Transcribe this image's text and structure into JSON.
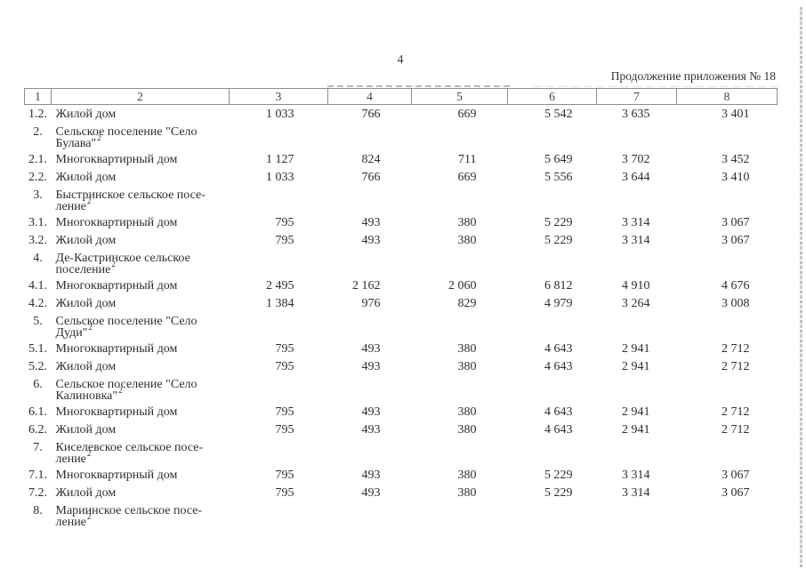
{
  "page": {
    "page_number": "4",
    "continuation_note": "Продолжение приложения № 18"
  },
  "table": {
    "header_cells": [
      "1",
      "2",
      "3",
      "4",
      "5",
      "6",
      "7",
      "8"
    ],
    "rows": [
      {
        "num": "1.2.",
        "name_lines": [
          "Жилой дом"
        ],
        "sup": "",
        "values": [
          "1 033",
          "766",
          "669",
          "5 542",
          "3 635",
          "3 401"
        ]
      },
      {
        "num": "2.",
        "name_lines": [
          "Сельское поселение \"Село",
          "Булава\""
        ],
        "sup": "2",
        "values": [
          "",
          "",
          "",
          "",
          "",
          ""
        ]
      },
      {
        "num": "2.1.",
        "name_lines": [
          "Многоквартирный дом"
        ],
        "sup": "",
        "values": [
          "1 127",
          "824",
          "711",
          "5 649",
          "3 702",
          "3 452"
        ]
      },
      {
        "num": "2.2.",
        "name_lines": [
          "Жилой дом"
        ],
        "sup": "",
        "values": [
          "1 033",
          "766",
          "669",
          "5 556",
          "3 644",
          "3 410"
        ]
      },
      {
        "num": "3.",
        "name_lines": [
          "Быстринское сельское посе-",
          "ление"
        ],
        "sup": "2",
        "values": [
          "",
          "",
          "",
          "",
          "",
          ""
        ]
      },
      {
        "num": "3.1.",
        "name_lines": [
          "Многоквартирный дом"
        ],
        "sup": "",
        "values": [
          "795",
          "493",
          "380",
          "5 229",
          "3 314",
          "3 067"
        ]
      },
      {
        "num": "3.2.",
        "name_lines": [
          "Жилой дом"
        ],
        "sup": "",
        "values": [
          "795",
          "493",
          "380",
          "5 229",
          "3 314",
          "3 067"
        ]
      },
      {
        "num": "4.",
        "name_lines": [
          "Де-Кастринское сельское",
          "поселение"
        ],
        "sup": "2",
        "values": [
          "",
          "",
          "",
          "",
          "",
          ""
        ]
      },
      {
        "num": "4.1.",
        "name_lines": [
          "Многоквартирный дом"
        ],
        "sup": "",
        "values": [
          "2 495",
          "2 162",
          "2 060",
          "6 812",
          "4 910",
          "4 676"
        ]
      },
      {
        "num": "4.2.",
        "name_lines": [
          "Жилой дом"
        ],
        "sup": "",
        "values": [
          "1 384",
          "976",
          "829",
          "4 979",
          "3 264",
          "3 008"
        ]
      },
      {
        "num": "5.",
        "name_lines": [
          "Сельское поселение \"Село",
          "Дуди\""
        ],
        "sup": "2",
        "values": [
          "",
          "",
          "",
          "",
          "",
          ""
        ]
      },
      {
        "num": "5.1.",
        "name_lines": [
          "Многоквартирный дом"
        ],
        "sup": "",
        "values": [
          "795",
          "493",
          "380",
          "4 643",
          "2 941",
          "2 712"
        ]
      },
      {
        "num": "5.2.",
        "name_lines": [
          "Жилой дом"
        ],
        "sup": "",
        "values": [
          "795",
          "493",
          "380",
          "4 643",
          "2 941",
          "2 712"
        ]
      },
      {
        "num": "6.",
        "name_lines": [
          "Сельское поселение \"Село",
          "Калиновка\""
        ],
        "sup": "2",
        "values": [
          "",
          "",
          "",
          "",
          "",
          ""
        ]
      },
      {
        "num": "6.1.",
        "name_lines": [
          "Многоквартирный дом"
        ],
        "sup": "",
        "values": [
          "795",
          "493",
          "380",
          "4 643",
          "2 941",
          "2 712"
        ]
      },
      {
        "num": "6.2.",
        "name_lines": [
          "Жилой дом"
        ],
        "sup": "",
        "values": [
          "795",
          "493",
          "380",
          "4 643",
          "2 941",
          "2 712"
        ]
      },
      {
        "num": "7.",
        "name_lines": [
          "Киселевское сельское посе-",
          "ление"
        ],
        "sup": "2",
        "values": [
          "",
          "",
          "",
          "",
          "",
          ""
        ]
      },
      {
        "num": "7.1.",
        "name_lines": [
          "Многоквартирный дом"
        ],
        "sup": "",
        "values": [
          "795",
          "493",
          "380",
          "5 229",
          "3 314",
          "3 067"
        ]
      },
      {
        "num": "7.2.",
        "name_lines": [
          "Жилой дом"
        ],
        "sup": "",
        "values": [
          "795",
          "493",
          "380",
          "5 229",
          "3 314",
          "3 067"
        ]
      },
      {
        "num": "8.",
        "name_lines": [
          "Мариинское сельское посе-",
          "ление"
        ],
        "sup": "2",
        "values": [
          "",
          "",
          "",
          "",
          "",
          ""
        ]
      }
    ]
  }
}
